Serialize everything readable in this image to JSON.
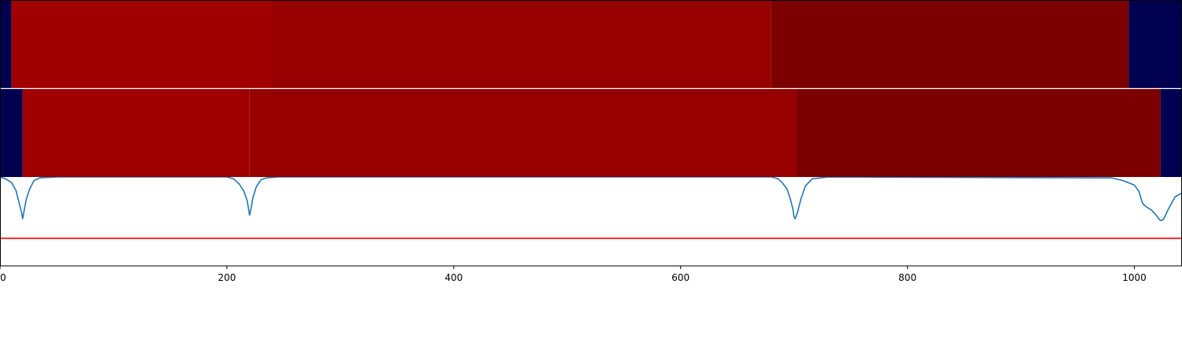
{
  "chart_data": {
    "type": "heatmap",
    "xlim": [
      0,
      1042
    ],
    "x_ticks": [
      0,
      200,
      400,
      600,
      800,
      1000
    ],
    "x_tick_labels": [
      "0",
      "200",
      "400",
      "600",
      "800",
      "1000"
    ],
    "grid": false,
    "colors": {
      "background": "#ffffff",
      "navy": "#000050",
      "segment_bright": "#a00000",
      "segment_mid": "#960000",
      "segment_dark": "#7c0000",
      "line_series": "#1f77b4",
      "threshold_line": "#ff0000",
      "separator": "#ffffff"
    },
    "panels": [
      {
        "segments": [
          {
            "start": 0,
            "end": 10,
            "color": "#000050"
          },
          {
            "start": 10,
            "end": 240,
            "color": "#a00000"
          },
          {
            "start": 240,
            "end": 680,
            "color": "#960000"
          },
          {
            "start": 680,
            "end": 995,
            "color": "#7c0000"
          },
          {
            "start": 995,
            "end": 1042,
            "color": "#000050"
          }
        ]
      },
      {
        "segments": [
          {
            "start": 0,
            "end": 20,
            "color": "#000050"
          },
          {
            "start": 20,
            "end": 220,
            "color": "#a00000"
          },
          {
            "start": 220,
            "end": 702,
            "color": "#960000"
          },
          {
            "start": 702,
            "end": 1023,
            "color": "#7c0000"
          },
          {
            "start": 1023,
            "end": 1042,
            "color": "#000050"
          }
        ]
      }
    ],
    "line_panel": {
      "ylim": [
        0,
        1
      ],
      "threshold": 0.31,
      "series": [
        {
          "x": [
            0,
            5,
            10,
            14,
            17,
            19,
            20,
            21,
            23,
            26,
            30,
            35,
            50,
            200,
            206,
            211,
            215,
            218,
            220,
            221,
            223,
            226,
            230,
            235,
            245,
            680,
            686,
            690,
            694,
            697,
            699,
            700,
            701,
            703,
            706,
            710,
            716,
            730,
            980,
            990,
            1000,
            1004,
            1007,
            1009,
            1011,
            1015,
            1020,
            1022,
            1024,
            1026,
            1030,
            1036,
            1042
          ],
          "y": [
            1.0,
            0.98,
            0.94,
            0.85,
            0.7,
            0.6,
            0.53,
            0.6,
            0.74,
            0.86,
            0.96,
            0.99,
            1.0,
            1.0,
            0.98,
            0.92,
            0.84,
            0.73,
            0.57,
            0.62,
            0.77,
            0.89,
            0.97,
            0.99,
            1.0,
            1.0,
            0.98,
            0.93,
            0.86,
            0.74,
            0.64,
            0.55,
            0.53,
            0.6,
            0.75,
            0.9,
            0.98,
            1.0,
            0.99,
            0.96,
            0.91,
            0.84,
            0.71,
            0.68,
            0.66,
            0.63,
            0.56,
            0.52,
            0.51,
            0.53,
            0.64,
            0.78,
            0.82
          ]
        }
      ]
    }
  }
}
